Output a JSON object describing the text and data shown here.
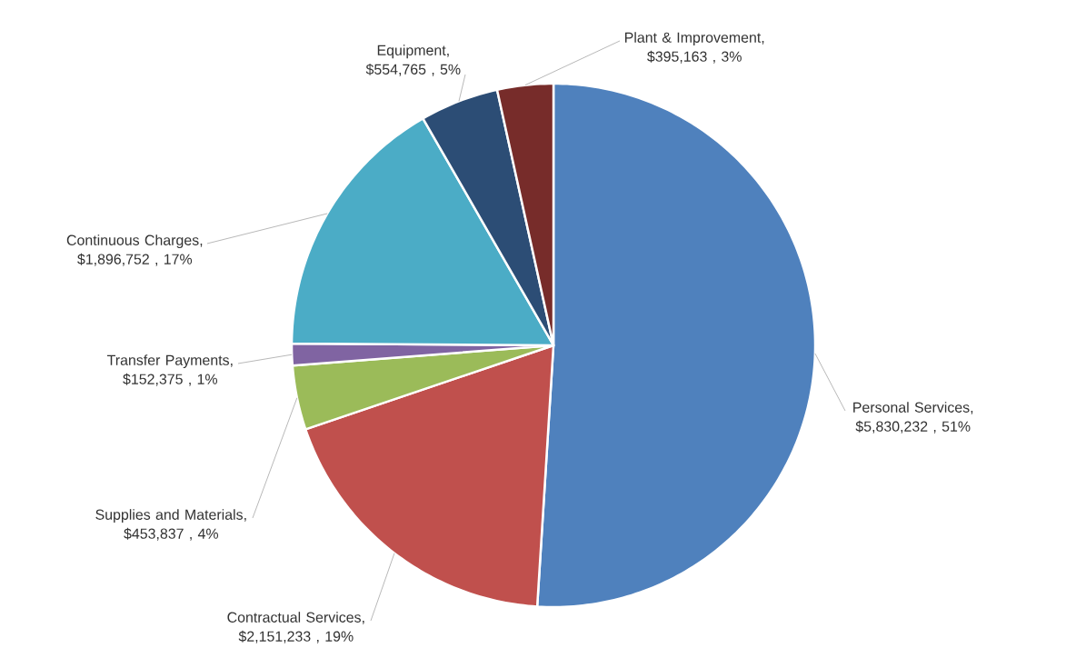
{
  "chart_data": {
    "type": "pie",
    "categories": [
      "Personal Services",
      "Contractual Services",
      "Supplies and Materials",
      "Transfer Payments",
      "Continuous Charges",
      "Equipment",
      "Plant & Improvement"
    ],
    "values": [
      5830232,
      2151233,
      453837,
      152375,
      1896752,
      554765,
      395163
    ],
    "value_labels": [
      ", $5,830,232 , 51%",
      ", $2,151,233 , 19%",
      ", $453,837 , 4%",
      ", $152,375 , 1%",
      ", $1,896,752 , 17%",
      ", $554,765 , 5%",
      ", $395,163 , 3%"
    ],
    "colors": [
      "#4f81bd",
      "#c0504d",
      "#9bbb59",
      "#8064a2",
      "#4bacc6",
      "#2c4d75",
      "#772c2a"
    ]
  }
}
